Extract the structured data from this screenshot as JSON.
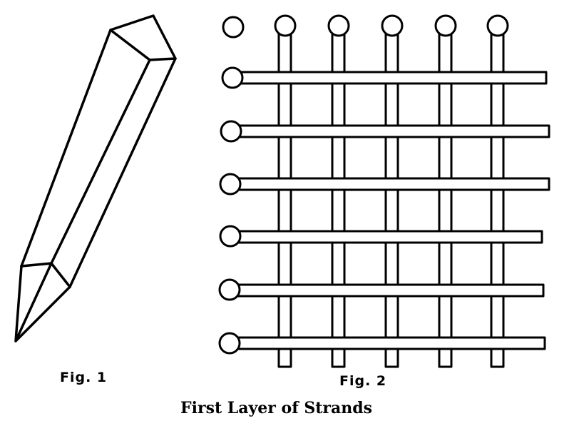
{
  "fig1": {
    "label": "Fig. 1",
    "subject": "pointed-stick"
  },
  "fig2": {
    "label": "Fig. 2",
    "vertical_strand_count": 5,
    "horizontal_strand_count": 6,
    "corner_knob_count": 1
  },
  "caption": "First Layer of Strands",
  "colors": {
    "ink": "#000000",
    "paper": "#ffffff"
  }
}
